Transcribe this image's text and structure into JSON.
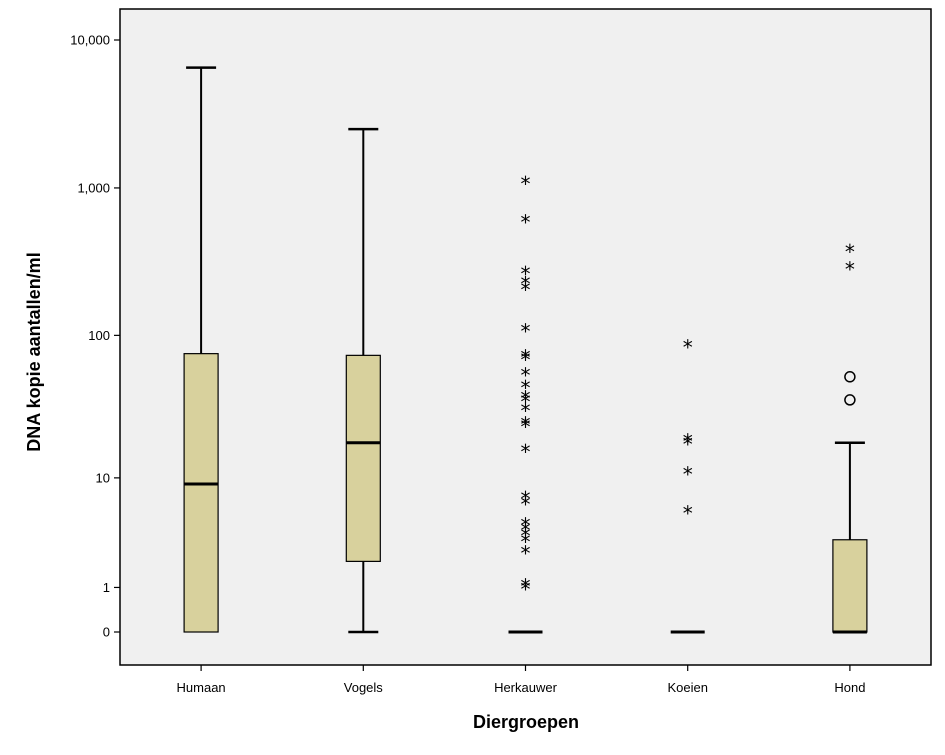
{
  "chart_data": {
    "type": "boxplot",
    "xlabel": "Diergroepen",
    "ylabel": "DNA kopie aantallen/ml",
    "y_scale": "log(1+y)",
    "y_ticks": [
      {
        "value": 0,
        "label": "0"
      },
      {
        "value": 1,
        "label": "1"
      },
      {
        "value": 10,
        "label": "10"
      },
      {
        "value": 100,
        "label": "100"
      },
      {
        "value": 1000,
        "label": "1,000"
      },
      {
        "value": 10000,
        "label": "10,000"
      }
    ],
    "grid": false,
    "colors": {
      "plot_background": "#f0f0f0",
      "box_fill": "#d8d19d",
      "line": "#000000"
    },
    "categories": [
      "Humaan",
      "Vogels",
      "Herkauwer",
      "Koeien",
      "Hond"
    ],
    "boxes": [
      {
        "whisker_low": 0,
        "q1": 0,
        "median": 9,
        "q3": 75,
        "whisker_high": 6500,
        "outliers": [],
        "extremes": []
      },
      {
        "whisker_low": 0,
        "q1": 2,
        "median": 18,
        "q3": 73,
        "whisker_high": 2500,
        "outliers": [],
        "extremes": []
      },
      {
        "whisker_low": 0,
        "q1": 0,
        "median": 0,
        "q3": 0,
        "whisker_high": 0,
        "outliers": [],
        "extremes": [
          1.0,
          1.1,
          2.5,
          3.2,
          3.6,
          4.0,
          4.4,
          6.5,
          7.2,
          16,
          24,
          25,
          31,
          36,
          38,
          45,
          55,
          70,
          73,
          110,
          210,
          230,
          270,
          600,
          1100
        ]
      },
      {
        "whisker_low": 0,
        "q1": 0,
        "median": 0,
        "q3": 0,
        "whisker_high": 0,
        "outliers": [],
        "extremes": [
          5.5,
          11,
          18,
          19,
          85
        ]
      },
      {
        "whisker_low": 0,
        "q1": 0,
        "median": 0,
        "q3": 3.2,
        "whisker_high": 18,
        "outliers": [
          36,
          52
        ],
        "extremes": [
          290,
          380
        ]
      }
    ]
  }
}
